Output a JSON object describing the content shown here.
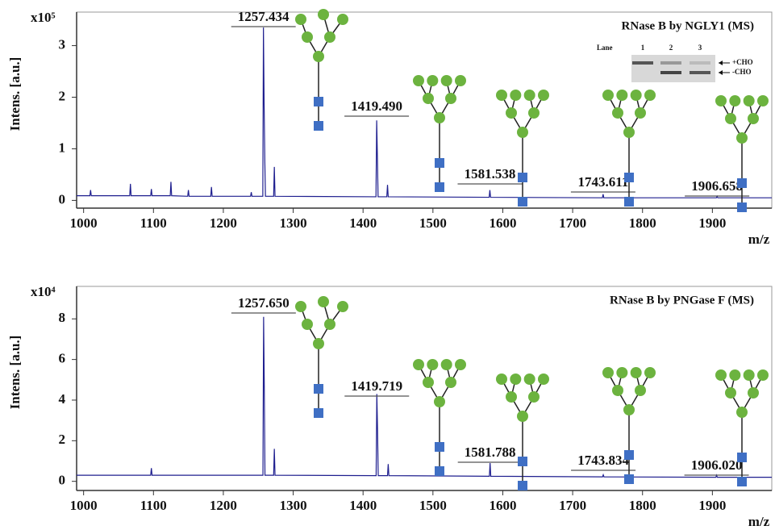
{
  "chart_data": [
    {
      "type": "line",
      "title": "RNase B by NGLY1 (MS)",
      "y_label": "Intens. [a.u.]",
      "y_scale": "x10⁵",
      "x_label": "m/z",
      "color": "#1f1f8f",
      "xlim": [
        990,
        1985
      ],
      "ylim": [
        -0.15,
        3.65
      ],
      "xticks": [
        1000,
        1100,
        1200,
        1300,
        1400,
        1500,
        1600,
        1700,
        1800,
        1900
      ],
      "yticks": [
        0,
        1,
        2,
        3
      ],
      "x": [
        990,
        1009,
        1010,
        1011,
        1066,
        1067,
        1068,
        1096,
        1097,
        1098,
        1124,
        1125,
        1126,
        1149,
        1150,
        1151,
        1182,
        1183,
        1184,
        1239,
        1240,
        1241,
        1256.5,
        1257.4,
        1258.4,
        1259.4,
        1260.3,
        1272,
        1273,
        1274,
        1418.5,
        1419.5,
        1420.5,
        1421.5,
        1434,
        1435,
        1436,
        1580.5,
        1581.5,
        1582.5,
        1742.6,
        1743.6,
        1744.6,
        1905.7,
        1906.7,
        1907.7,
        1985
      ],
      "values": [
        0.09,
        0.09,
        0.2,
        0.09,
        0.09,
        0.32,
        0.09,
        0.09,
        0.22,
        0.09,
        0.09,
        0.36,
        0.09,
        0.08,
        0.2,
        0.08,
        0.08,
        0.26,
        0.08,
        0.08,
        0.16,
        0.08,
        0.08,
        3.35,
        1.85,
        0.75,
        0.08,
        0.08,
        0.65,
        0.08,
        0.07,
        1.55,
        0.85,
        0.07,
        0.07,
        0.3,
        0.07,
        0.06,
        0.2,
        0.06,
        0.05,
        0.12,
        0.05,
        0.05,
        0.08,
        0.05,
        0.05
      ],
      "peak_labels": [
        {
          "value": 1257.434,
          "label": "1257.434"
        },
        {
          "value": 1419.49,
          "label": "1419.490"
        },
        {
          "value": 1581.538,
          "label": "1581.538"
        },
        {
          "value": 1743.611,
          "label": "1743.611"
        },
        {
          "value": 1906.658,
          "label": "1906.658"
        }
      ],
      "inset": {
        "lane_label": "Lane",
        "lanes": [
          "1",
          "2",
          "3"
        ],
        "bands": [
          "+CHO",
          "-CHO"
        ]
      }
    },
    {
      "type": "line",
      "title": "RNase B by PNGase F (MS)",
      "y_label": "Intens. [a.u.]",
      "y_scale": "x10⁴",
      "x_label": "m/z",
      "color": "#1f1f8f",
      "xlim": [
        990,
        1985
      ],
      "ylim": [
        -0.45,
        9.6
      ],
      "xticks": [
        1000,
        1100,
        1200,
        1300,
        1400,
        1500,
        1600,
        1700,
        1800,
        1900
      ],
      "yticks": [
        0,
        2,
        4,
        6,
        8
      ],
      "x": [
        990,
        1096,
        1097,
        1098,
        1256.7,
        1257.65,
        1258.6,
        1259.6,
        1272,
        1273,
        1274,
        1418.7,
        1419.7,
        1420.7,
        1421.7,
        1435,
        1436,
        1437,
        1580.8,
        1581.8,
        1582.8,
        1742.8,
        1743.8,
        1744.8,
        1905,
        1906,
        1907,
        1985
      ],
      "values": [
        0.3,
        0.3,
        0.65,
        0.3,
        0.3,
        8.1,
        4.7,
        0.3,
        0.3,
        1.6,
        0.3,
        0.28,
        4.3,
        2.6,
        0.28,
        0.28,
        0.85,
        0.28,
        0.25,
        0.9,
        0.25,
        0.22,
        0.32,
        0.22,
        0.2,
        0.3,
        0.2,
        0.2
      ],
      "peak_labels": [
        {
          "value": 1257.65,
          "label": "1257.650"
        },
        {
          "value": 1419.719,
          "label": "1419.719"
        },
        {
          "value": 1581.788,
          "label": "1581.788"
        },
        {
          "value": 1743.834,
          "label": "1743.834"
        },
        {
          "value": 1906.02,
          "label": "1906.020"
        }
      ]
    }
  ]
}
